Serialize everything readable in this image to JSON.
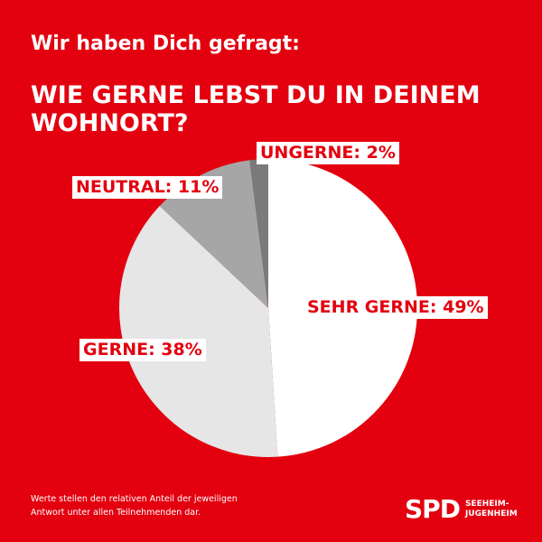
{
  "header": {
    "kicker": "Wir haben Dich gefragt:",
    "title_line1": "WIE GERNE LEBST DU IN DEINEM",
    "title_line2": "WOHNORT?"
  },
  "chart_data": {
    "type": "pie",
    "title": "WIE GERNE LEBST DU IN DEINEM WOHNORT?",
    "slices": [
      {
        "label": "SEHR GERNE",
        "value": 49,
        "display": "SEHR GERNE: 49%",
        "color": "#ffffff"
      },
      {
        "label": "GERNE",
        "value": 38,
        "display": "GERNE: 38%",
        "color": "#e6e6e6"
      },
      {
        "label": "NEUTRAL",
        "value": 11,
        "display": "NEUTRAL: 11%",
        "color": "#a6a6a6"
      },
      {
        "label": "UNGERNE",
        "value": 2,
        "display": "UNGERNE: 2%",
        "color": "#7a7a7a"
      }
    ]
  },
  "footnote": {
    "line1": "Werte stellen den relativen Anteil der jeweiligen",
    "line2": "Antwort unter allen Teilnehmenden dar."
  },
  "logo": {
    "brand": "SPD",
    "local_line1": "SEEHEIM-",
    "local_line2": "JUGENHEIM"
  },
  "colors": {
    "background": "#e3000f",
    "label_text": "#e3000f",
    "label_box": "#ffffff"
  }
}
